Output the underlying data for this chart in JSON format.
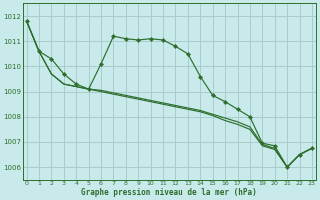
{
  "title": "Graphe pression niveau de la mer (hPa)",
  "background_color": "#c8eaea",
  "grid_color": "#aacccc",
  "line_color": "#2d6e2d",
  "marker_color": "#2d6e2d",
  "ylim": [
    1005.5,
    1012.5
  ],
  "xlim": [
    -0.3,
    23.3
  ],
  "yticks": [
    1006,
    1007,
    1008,
    1009,
    1010,
    1011,
    1012
  ],
  "xticks": [
    0,
    1,
    2,
    3,
    4,
    5,
    6,
    7,
    8,
    9,
    10,
    11,
    12,
    13,
    14,
    15,
    16,
    17,
    18,
    19,
    20,
    21,
    22,
    23
  ],
  "series_main": [
    1011.8,
    1010.6,
    1010.3,
    1009.7,
    1009.3,
    1009.1,
    1010.1,
    1011.2,
    1011.1,
    1011.05,
    1011.1,
    1011.05,
    1010.8,
    1010.5,
    1009.6,
    1008.85,
    1008.6,
    1008.3,
    1008.0,
    1006.95,
    1006.85,
    1006.0,
    1006.5,
    1006.75
  ],
  "series_line2": [
    1011.8,
    1010.6,
    1009.7,
    1009.3,
    1009.2,
    1009.1,
    1009.05,
    1008.95,
    1008.85,
    1008.75,
    1008.65,
    1008.55,
    1008.45,
    1008.35,
    1008.25,
    1008.1,
    1007.95,
    1007.8,
    1007.6,
    1006.9,
    1006.75,
    1006.0,
    1006.5,
    1006.75
  ],
  "series_line3": [
    1011.8,
    1010.6,
    1009.7,
    1009.3,
    1009.2,
    1009.1,
    1009.0,
    1008.9,
    1008.8,
    1008.7,
    1008.6,
    1008.5,
    1008.4,
    1008.3,
    1008.2,
    1008.05,
    1007.85,
    1007.7,
    1007.5,
    1006.85,
    1006.7,
    1006.0,
    1006.5,
    1006.75
  ]
}
